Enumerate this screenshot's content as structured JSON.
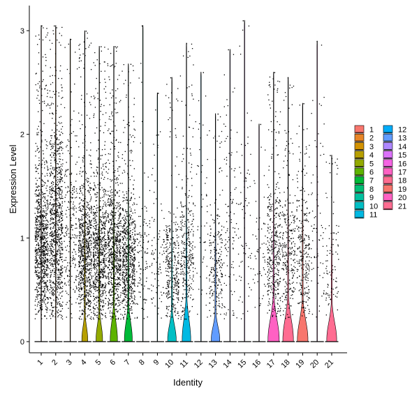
{
  "chart_data": {
    "type": "violin",
    "xlabel": "Identity",
    "ylabel": "Expression Level",
    "ylim": [
      0,
      3.15
    ],
    "yticks": [
      0,
      1,
      2,
      3
    ],
    "jitter_points": true,
    "legend_position": "right",
    "legend_columns": 2,
    "grid": false,
    "categories": [
      "1",
      "2",
      "3",
      "4",
      "5",
      "6",
      "7",
      "8",
      "9",
      "10",
      "11",
      "12",
      "13",
      "14",
      "15",
      "16",
      "17",
      "18",
      "19",
      "20",
      "21"
    ],
    "series": [
      {
        "name": "1",
        "color": "#F8766D",
        "max": 3.05,
        "point_density": 1.0,
        "zero_fraction": 0.0,
        "bulk_top": 1.9,
        "violin_peak": 0.0,
        "violin_width": 0.0
      },
      {
        "name": "2",
        "color": "#E88526",
        "max": 3.05,
        "point_density": 1.0,
        "zero_fraction": 0.0,
        "bulk_top": 2.3,
        "violin_peak": 0.0,
        "violin_width": 0.0
      },
      {
        "name": "3",
        "color": "#D39200",
        "max": 2.92,
        "point_density": 0.25,
        "zero_fraction": 0.0,
        "bulk_top": 2.4,
        "violin_peak": 0.0,
        "violin_width": 0.0
      },
      {
        "name": "4",
        "color": "#B79F00",
        "max": 3.0,
        "point_density": 0.85,
        "zero_fraction": 0.5,
        "bulk_top": 1.7,
        "violin_peak": 0.12,
        "violin_width": 0.45
      },
      {
        "name": "5",
        "color": "#93AA00",
        "max": 2.85,
        "point_density": 0.85,
        "zero_fraction": 0.45,
        "bulk_top": 1.7,
        "violin_peak": 0.14,
        "violin_width": 0.5
      },
      {
        "name": "6",
        "color": "#5EB300",
        "max": 2.85,
        "point_density": 0.85,
        "zero_fraction": 0.45,
        "bulk_top": 1.7,
        "violin_peak": 0.18,
        "violin_width": 0.55
      },
      {
        "name": "7",
        "color": "#00BA38",
        "max": 2.68,
        "point_density": 0.75,
        "zero_fraction": 0.45,
        "bulk_top": 1.6,
        "violin_peak": 0.18,
        "violin_width": 0.6
      },
      {
        "name": "8",
        "color": "#00BF74",
        "max": 3.05,
        "point_density": 0.12,
        "zero_fraction": 0.0,
        "bulk_top": 1.5,
        "violin_peak": 0.0,
        "violin_width": 0.0
      },
      {
        "name": "9",
        "color": "#00C19F",
        "max": 2.4,
        "point_density": 0.1,
        "zero_fraction": 0.0,
        "bulk_top": 1.5,
        "violin_peak": 0.0,
        "violin_width": 0.0
      },
      {
        "name": "10",
        "color": "#00BFC4",
        "max": 2.55,
        "point_density": 0.35,
        "zero_fraction": 0.6,
        "bulk_top": 1.3,
        "violin_peak": 0.14,
        "violin_width": 0.65
      },
      {
        "name": "11",
        "color": "#00B9E3",
        "max": 2.88,
        "point_density": 0.35,
        "zero_fraction": 0.55,
        "bulk_top": 1.6,
        "violin_peak": 0.22,
        "violin_width": 0.65
      },
      {
        "name": "12",
        "color": "#00ADFA",
        "max": 2.6,
        "point_density": 0.06,
        "zero_fraction": 0.0,
        "bulk_top": 2.3,
        "violin_peak": 0.0,
        "violin_width": 0.0
      },
      {
        "name": "13",
        "color": "#619CFF",
        "max": 2.2,
        "point_density": 0.25,
        "zero_fraction": 0.5,
        "bulk_top": 1.4,
        "violin_peak": 0.12,
        "violin_width": 0.65
      },
      {
        "name": "14",
        "color": "#AE87FF",
        "max": 2.82,
        "point_density": 0.12,
        "zero_fraction": 0.0,
        "bulk_top": 2.2,
        "violin_peak": 0.0,
        "violin_width": 0.0
      },
      {
        "name": "15",
        "color": "#DB72FB",
        "max": 3.1,
        "point_density": 0.08,
        "zero_fraction": 0.0,
        "bulk_top": 2.2,
        "violin_peak": 0.0,
        "violin_width": 0.0
      },
      {
        "name": "16",
        "color": "#F564E3",
        "max": 2.1,
        "point_density": 0.06,
        "zero_fraction": 0.0,
        "bulk_top": 1.6,
        "violin_peak": 0.0,
        "violin_width": 0.0
      },
      {
        "name": "17",
        "color": "#FF61C3",
        "max": 2.6,
        "point_density": 0.45,
        "zero_fraction": 0.55,
        "bulk_top": 1.6,
        "violin_peak": 0.22,
        "violin_width": 0.85
      },
      {
        "name": "18",
        "color": "#FF6C91",
        "max": 2.55,
        "point_density": 0.3,
        "zero_fraction": 0.55,
        "bulk_top": 1.6,
        "violin_peak": 0.22,
        "violin_width": 0.8
      },
      {
        "name": "19",
        "color": "#F8766D",
        "max": 2.3,
        "point_density": 0.3,
        "zero_fraction": 0.55,
        "bulk_top": 1.6,
        "violin_peak": 0.2,
        "violin_width": 0.8
      },
      {
        "name": "20",
        "color": "#FF61C3",
        "max": 2.9,
        "point_density": 0.08,
        "zero_fraction": 0.0,
        "bulk_top": 2.2,
        "violin_peak": 0.0,
        "violin_width": 0.0
      },
      {
        "name": "21",
        "color": "#FF6C91",
        "max": 1.8,
        "point_density": 0.1,
        "zero_fraction": 0.55,
        "bulk_top": 1.4,
        "violin_peak": 0.18,
        "violin_width": 0.75
      }
    ]
  }
}
